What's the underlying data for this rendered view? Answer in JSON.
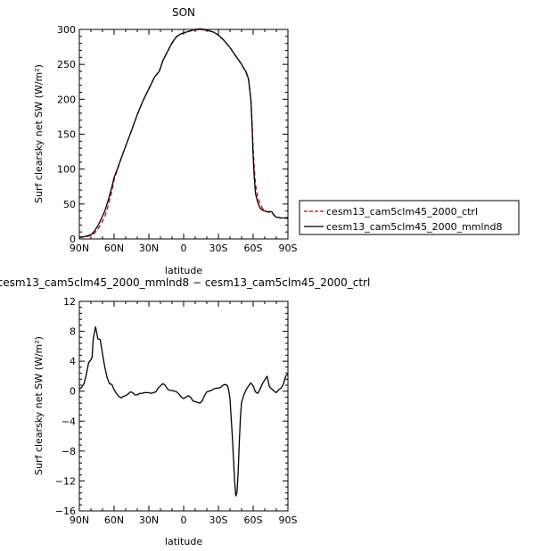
{
  "chart_data": [
    {
      "type": "line",
      "title": "SON",
      "xlabel": "latitude",
      "ylabel": "Surf clearsky net SW (W/m²)",
      "x_ticks": [
        -90,
        -60,
        -30,
        0,
        30,
        60,
        90
      ],
      "x_tick_labels": [
        "90N",
        "60N",
        "30N",
        "0",
        "30S",
        "60S",
        "90S"
      ],
      "xlim": [
        -90,
        90
      ],
      "ylim": [
        0,
        300
      ],
      "y_ticks": [
        0,
        50,
        100,
        150,
        200,
        250,
        300
      ],
      "y_tick_labels": [
        "0",
        "50",
        "100",
        "150",
        "200",
        "250",
        "300"
      ],
      "legend_position": "right",
      "series": [
        {
          "name": "cesm13_cam5clm45_2000_ctrl",
          "color": "#cc0000",
          "dash": "dashed",
          "points": [
            [
              -90,
              2
            ],
            [
              -85,
              3
            ],
            [
              -80,
              5
            ],
            [
              -77,
              8
            ],
            [
              -74,
              14
            ],
            [
              -71,
              22
            ],
            [
              -68,
              32
            ],
            [
              -65,
              48
            ],
            [
              -62,
              68
            ],
            [
              -60,
              85
            ],
            [
              -57,
              100
            ],
            [
              -54,
              115
            ],
            [
              -50,
              133
            ],
            [
              -45,
              155
            ],
            [
              -40,
              178
            ],
            [
              -35,
              198
            ],
            [
              -30,
              215
            ],
            [
              -25,
              232
            ],
            [
              -21,
              240
            ],
            [
              -18,
              255
            ],
            [
              -14,
              268
            ],
            [
              -10,
              280
            ],
            [
              -6,
              290
            ],
            [
              -2,
              294
            ],
            [
              2,
              296
            ],
            [
              6,
              298
            ],
            [
              10,
              299
            ],
            [
              14,
              300
            ],
            [
              18,
              299
            ],
            [
              22,
              298
            ],
            [
              26,
              296
            ],
            [
              30,
              292
            ],
            [
              35,
              284
            ],
            [
              40,
              274
            ],
            [
              45,
              262
            ],
            [
              50,
              250
            ],
            [
              54,
              238
            ],
            [
              56,
              228
            ],
            [
              58,
              200
            ],
            [
              59,
              170
            ],
            [
              60,
              130
            ],
            [
              61,
              100
            ],
            [
              62,
              78
            ],
            [
              64,
              60
            ],
            [
              66,
              50
            ],
            [
              68,
              44
            ],
            [
              70,
              40
            ],
            [
              72,
              39
            ],
            [
              74,
              38
            ],
            [
              76,
              38
            ],
            [
              78,
              34
            ],
            [
              80,
              31
            ],
            [
              82,
              31
            ],
            [
              84,
              30
            ],
            [
              87,
              30
            ],
            [
              90,
              29
            ]
          ]
        },
        {
          "name": "cesm13_cam5clm45_2000_mmlnd8",
          "color": "#000000",
          "dash": "solid",
          "points": [
            [
              -90,
              2.5
            ],
            [
              -85,
              3.5
            ],
            [
              -80,
              6
            ],
            [
              -77,
              11
            ],
            [
              -74,
              19
            ],
            [
              -71,
              29
            ],
            [
              -68,
              40
            ],
            [
              -65,
              56
            ],
            [
              -62,
              74
            ],
            [
              -60,
              88
            ],
            [
              -57,
              101
            ],
            [
              -54,
              115
            ],
            [
              -50,
              133
            ],
            [
              -45,
              155
            ],
            [
              -40,
              178
            ],
            [
              -35,
              198
            ],
            [
              -30,
              215
            ],
            [
              -25,
              232
            ],
            [
              -21,
              240
            ],
            [
              -18,
              255
            ],
            [
              -14,
              268
            ],
            [
              -10,
              281
            ],
            [
              -6,
              290
            ],
            [
              -2,
              294
            ],
            [
              2,
              296
            ],
            [
              6,
              298
            ],
            [
              10,
              300
            ],
            [
              14,
              301
            ],
            [
              18,
              300
            ],
            [
              22,
              298
            ],
            [
              26,
              296
            ],
            [
              30,
              292
            ],
            [
              35,
              284
            ],
            [
              40,
              274
            ],
            [
              45,
              262
            ],
            [
              50,
              250
            ],
            [
              54,
              239
            ],
            [
              56,
              229
            ],
            [
              58,
              200
            ],
            [
              59,
              165
            ],
            [
              60,
              118
            ],
            [
              61,
              87
            ],
            [
              62,
              65
            ],
            [
              64,
              52
            ],
            [
              66,
              44
            ],
            [
              68,
              41
            ],
            [
              70,
              40
            ],
            [
              72,
              39
            ],
            [
              74,
              39
            ],
            [
              76,
              39
            ],
            [
              78,
              34
            ],
            [
              80,
              31
            ],
            [
              82,
              31
            ],
            [
              84,
              30
            ],
            [
              87,
              30
            ],
            [
              90,
              31
            ]
          ]
        }
      ]
    },
    {
      "type": "line",
      "title": "cesm13_cam5clm45_2000_mmlnd8 − cesm13_cam5clm45_2000_ctrl",
      "xlabel": "latitude",
      "ylabel": "Surf clearsky net SW (W/m²)",
      "x_ticks": [
        -90,
        -60,
        -30,
        0,
        30,
        60,
        90
      ],
      "x_tick_labels": [
        "90N",
        "60N",
        "30N",
        "0",
        "30S",
        "60S",
        "90S"
      ],
      "xlim": [
        -90,
        90
      ],
      "ylim": [
        -16,
        12
      ],
      "y_ticks": [
        -16,
        -12,
        -8,
        -4,
        0,
        4,
        8,
        12
      ],
      "y_tick_labels": [
        "−16",
        "−12",
        "−8",
        "−4",
        "0",
        "4",
        "8",
        "12"
      ],
      "series": [
        {
          "name": "",
          "color": "#000000",
          "dash": "solid",
          "points": [
            [
              -90,
              0.3
            ],
            [
              -88,
              0.5
            ],
            [
              -86,
              1.0
            ],
            [
              -84,
              2.2
            ],
            [
              -82,
              3.8
            ],
            [
              -80,
              4.2
            ],
            [
              -79,
              4.5
            ],
            [
              -78,
              7.0
            ],
            [
              -76,
              8.6
            ],
            [
              -75,
              7.8
            ],
            [
              -74,
              7.0
            ],
            [
              -72,
              6.9
            ],
            [
              -70,
              5.0
            ],
            [
              -68,
              3.2
            ],
            [
              -66,
              1.8
            ],
            [
              -64,
              1.0
            ],
            [
              -62,
              0.9
            ],
            [
              -60,
              0.2
            ],
            [
              -58,
              -0.3
            ],
            [
              -56,
              -0.7
            ],
            [
              -54,
              -0.9
            ],
            [
              -52,
              -0.7
            ],
            [
              -50,
              -0.6
            ],
            [
              -48,
              -0.4
            ],
            [
              -46,
              -0.1
            ],
            [
              -44,
              -0.2
            ],
            [
              -42,
              -0.5
            ],
            [
              -40,
              -0.5
            ],
            [
              -38,
              -0.3
            ],
            [
              -36,
              -0.3
            ],
            [
              -34,
              -0.2
            ],
            [
              -32,
              -0.2
            ],
            [
              -30,
              -0.2
            ],
            [
              -28,
              -0.3
            ],
            [
              -26,
              -0.2
            ],
            [
              -24,
              -0.1
            ],
            [
              -22,
              0.4
            ],
            [
              -20,
              0.7
            ],
            [
              -18,
              1.0
            ],
            [
              -16,
              0.8
            ],
            [
              -14,
              0.3
            ],
            [
              -12,
              0.1
            ],
            [
              -10,
              0.1
            ],
            [
              -8,
              0.0
            ],
            [
              -6,
              -0.1
            ],
            [
              -4,
              -0.4
            ],
            [
              -2,
              -0.8
            ],
            [
              0,
              -1.0
            ],
            [
              2,
              -0.8
            ],
            [
              4,
              -0.6
            ],
            [
              6,
              -0.8
            ],
            [
              8,
              -1.3
            ],
            [
              10,
              -1.4
            ],
            [
              12,
              -1.5
            ],
            [
              14,
              -1.6
            ],
            [
              16,
              -1.3
            ],
            [
              18,
              -0.6
            ],
            [
              20,
              -0.1
            ],
            [
              22,
              0.0
            ],
            [
              24,
              0.1
            ],
            [
              26,
              0.3
            ],
            [
              28,
              0.4
            ],
            [
              30,
              0.4
            ],
            [
              32,
              0.5
            ],
            [
              34,
              0.8
            ],
            [
              36,
              0.9
            ],
            [
              38,
              0.7
            ],
            [
              39,
              0.0
            ],
            [
              40,
              -1.0
            ],
            [
              41,
              -3.5
            ],
            [
              42,
              -6.0
            ],
            [
              43,
              -9.0
            ],
            [
              44,
              -12.0
            ],
            [
              45,
              -14.0
            ],
            [
              46,
              -13.6
            ],
            [
              47,
              -11.0
            ],
            [
              48,
              -7.0
            ],
            [
              49,
              -3.5
            ],
            [
              50,
              -1.5
            ],
            [
              52,
              -0.5
            ],
            [
              54,
              0.2
            ],
            [
              56,
              0.7
            ],
            [
              58,
              1.1
            ],
            [
              60,
              0.7
            ],
            [
              62,
              -0.1
            ],
            [
              64,
              -0.3
            ],
            [
              66,
              0.3
            ],
            [
              68,
              1.0
            ],
            [
              70,
              1.5
            ],
            [
              72,
              2.0
            ],
            [
              74,
              0.6
            ],
            [
              76,
              0.3
            ],
            [
              78,
              0.0
            ],
            [
              80,
              -0.2
            ],
            [
              82,
              0.2
            ],
            [
              84,
              0.4
            ],
            [
              86,
              0.9
            ],
            [
              88,
              2.0
            ],
            [
              90,
              2.3
            ]
          ]
        }
      ]
    }
  ]
}
